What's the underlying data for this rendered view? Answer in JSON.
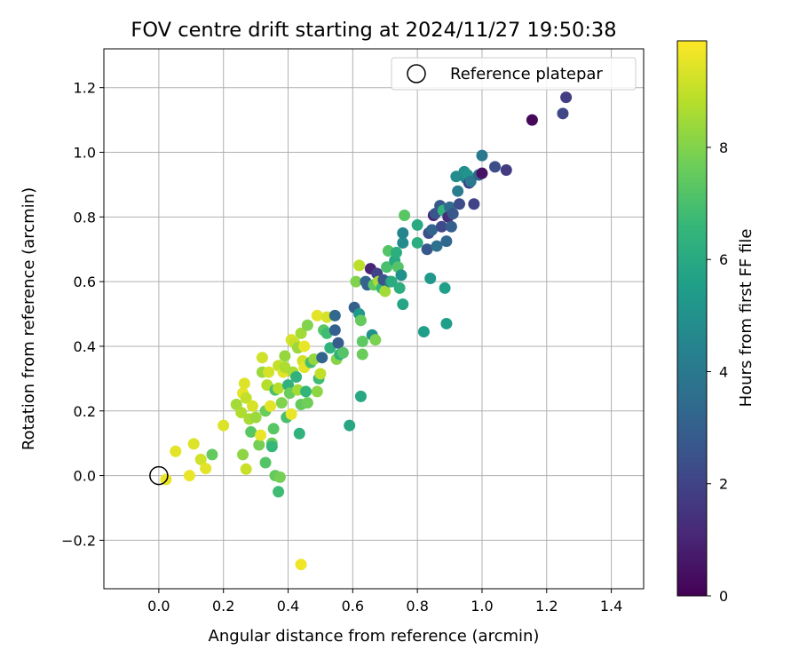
{
  "chart_data": {
    "type": "scatter",
    "title": "FOV centre drift starting at 2024/11/27 19:50:38",
    "xlabel": "Angular distance from reference (arcmin)",
    "ylabel": "Rotation from reference (arcmin)",
    "xlim": [
      -0.17,
      1.5
    ],
    "ylim": [
      -0.35,
      1.32
    ],
    "xticks": [
      0.0,
      0.2,
      0.4,
      0.6,
      0.8,
      1.0,
      1.2,
      1.4
    ],
    "xtick_labels": [
      "0.0",
      "0.2",
      "0.4",
      "0.6",
      "0.8",
      "1.0",
      "1.2",
      "1.4"
    ],
    "yticks": [
      -0.2,
      0.0,
      0.2,
      0.4,
      0.6,
      0.8,
      1.0,
      1.2
    ],
    "ytick_labels": [
      "−0.2",
      "0.0",
      "0.2",
      "0.4",
      "0.6",
      "0.8",
      "1.0",
      "1.2"
    ],
    "grid": true,
    "legend": {
      "label": "Reference platepar",
      "placement": "top-right"
    },
    "reference_point": [
      0.0,
      0.0
    ],
    "colorbar": {
      "label": "Hours from first FF file",
      "colormap": "viridis",
      "range": [
        0,
        9.9
      ],
      "ticks": [
        0,
        2,
        4,
        6,
        8
      ],
      "tick_labels": [
        "0",
        "2",
        "4",
        "6",
        "8"
      ]
    },
    "points": [
      [
        0.022,
        -0.012,
        9.6
      ],
      [
        0.052,
        0.075,
        9.5
      ],
      [
        0.095,
        0.0,
        9.6
      ],
      [
        0.108,
        0.098,
        9.4
      ],
      [
        0.13,
        0.05,
        9.2
      ],
      [
        0.145,
        0.022,
        9.5
      ],
      [
        0.165,
        0.065,
        7.5
      ],
      [
        0.2,
        0.155,
        9.4
      ],
      [
        0.24,
        0.22,
        8.5
      ],
      [
        0.255,
        0.195,
        8.7
      ],
      [
        0.26,
        0.065,
        8.2
      ],
      [
        0.26,
        0.255,
        9.5
      ],
      [
        0.265,
        0.285,
        9.4
      ],
      [
        0.27,
        0.24,
        9.0
      ],
      [
        0.27,
        0.02,
        9.1
      ],
      [
        0.28,
        0.175,
        8.6
      ],
      [
        0.285,
        0.135,
        7.3
      ],
      [
        0.29,
        0.215,
        9.3
      ],
      [
        0.3,
        0.18,
        8.4
      ],
      [
        0.31,
        0.095,
        7.8
      ],
      [
        0.315,
        0.125,
        9.6
      ],
      [
        0.32,
        0.32,
        8.4
      ],
      [
        0.32,
        0.365,
        9.2
      ],
      [
        0.33,
        0.2,
        7.6
      ],
      [
        0.33,
        0.04,
        7.2
      ],
      [
        0.335,
        0.28,
        8.8
      ],
      [
        0.34,
        0.32,
        9.3
      ],
      [
        0.345,
        0.215,
        9.5
      ],
      [
        0.35,
        0.1,
        7.6
      ],
      [
        0.35,
        0.09,
        6.6
      ],
      [
        0.355,
        0.145,
        7.3
      ],
      [
        0.36,
        0.265,
        7.0
      ],
      [
        0.36,
        0.0,
        7.5
      ],
      [
        0.37,
        0.34,
        9.0
      ],
      [
        0.37,
        0.27,
        8.8
      ],
      [
        0.37,
        -0.05,
        6.8
      ],
      [
        0.375,
        -0.005,
        7.8
      ],
      [
        0.38,
        0.225,
        8.0
      ],
      [
        0.385,
        0.32,
        9.5
      ],
      [
        0.39,
        0.37,
        8.3
      ],
      [
        0.39,
        0.335,
        8.7
      ],
      [
        0.395,
        0.18,
        7.0
      ],
      [
        0.4,
        0.28,
        6.3
      ],
      [
        0.405,
        0.255,
        7.6
      ],
      [
        0.41,
        0.42,
        9.3
      ],
      [
        0.41,
        0.19,
        9.6
      ],
      [
        0.415,
        0.32,
        8.6
      ],
      [
        0.42,
        0.41,
        9.1
      ],
      [
        0.425,
        0.305,
        6.4
      ],
      [
        0.43,
        0.395,
        8.4
      ],
      [
        0.43,
        0.265,
        8.5
      ],
      [
        0.435,
        0.13,
        6.4
      ],
      [
        0.44,
        0.44,
        8.5
      ],
      [
        0.44,
        0.22,
        7.5
      ],
      [
        0.44,
        -0.275,
        9.7
      ],
      [
        0.445,
        0.355,
        9.2
      ],
      [
        0.45,
        0.4,
        9.6
      ],
      [
        0.45,
        0.335,
        9.5
      ],
      [
        0.455,
        0.26,
        6.5
      ],
      [
        0.46,
        0.225,
        7.7
      ],
      [
        0.46,
        0.465,
        8.0
      ],
      [
        0.47,
        0.35,
        6.9
      ],
      [
        0.48,
        0.36,
        8.3
      ],
      [
        0.49,
        0.26,
        8.2
      ],
      [
        0.49,
        0.495,
        9.5
      ],
      [
        0.495,
        0.3,
        6.8
      ],
      [
        0.5,
        0.315,
        9.0
      ],
      [
        0.505,
        0.365,
        3.2
      ],
      [
        0.51,
        0.45,
        7.3
      ],
      [
        0.52,
        0.49,
        9.3
      ],
      [
        0.52,
        0.44,
        6.8
      ],
      [
        0.53,
        0.395,
        6.4
      ],
      [
        0.545,
        0.45,
        3.0
      ],
      [
        0.545,
        0.495,
        3.3
      ],
      [
        0.55,
        0.36,
        8.1
      ],
      [
        0.555,
        0.41,
        2.9
      ],
      [
        0.56,
        0.375,
        6.3
      ],
      [
        0.57,
        0.38,
        7.2
      ],
      [
        0.59,
        0.155,
        5.9
      ],
      [
        0.605,
        0.52,
        3.0
      ],
      [
        0.61,
        0.6,
        8.0
      ],
      [
        0.62,
        0.5,
        5.3
      ],
      [
        0.62,
        0.65,
        8.9
      ],
      [
        0.625,
        0.48,
        7.5
      ],
      [
        0.625,
        0.245,
        5.9
      ],
      [
        0.63,
        0.415,
        7.4
      ],
      [
        0.63,
        0.375,
        7.6
      ],
      [
        0.64,
        0.6,
        3.3
      ],
      [
        0.645,
        0.59,
        3.1
      ],
      [
        0.655,
        0.64,
        1.0
      ],
      [
        0.66,
        0.435,
        5.0
      ],
      [
        0.665,
        0.59,
        7.4
      ],
      [
        0.67,
        0.42,
        7.9
      ],
      [
        0.675,
        0.625,
        2.0
      ],
      [
        0.68,
        0.6,
        8.6
      ],
      [
        0.69,
        0.58,
        6.6
      ],
      [
        0.695,
        0.605,
        2.6
      ],
      [
        0.7,
        0.57,
        8.5
      ],
      [
        0.705,
        0.645,
        7.0
      ],
      [
        0.71,
        0.695,
        7.2
      ],
      [
        0.715,
        0.6,
        3.4
      ],
      [
        0.72,
        0.6,
        6.1
      ],
      [
        0.73,
        0.665,
        6.0
      ],
      [
        0.735,
        0.69,
        6.2
      ],
      [
        0.74,
        0.645,
        7.2
      ],
      [
        0.745,
        0.58,
        6.2
      ],
      [
        0.75,
        0.62,
        5.0
      ],
      [
        0.755,
        0.53,
        5.8
      ],
      [
        0.755,
        0.72,
        4.8
      ],
      [
        0.755,
        0.75,
        4.5
      ],
      [
        0.76,
        0.805,
        7.3
      ],
      [
        0.8,
        0.72,
        6.2
      ],
      [
        0.8,
        0.775,
        6.0
      ],
      [
        0.82,
        0.445,
        5.5
      ],
      [
        0.83,
        0.7,
        2.7
      ],
      [
        0.835,
        0.75,
        2.4
      ],
      [
        0.84,
        0.61,
        5.3
      ],
      [
        0.845,
        0.76,
        3.2
      ],
      [
        0.85,
        0.805,
        1.0
      ],
      [
        0.855,
        0.81,
        2.6
      ],
      [
        0.86,
        0.71,
        3.7
      ],
      [
        0.87,
        0.835,
        2.8
      ],
      [
        0.875,
        0.77,
        2.2
      ],
      [
        0.88,
        0.82,
        6.4
      ],
      [
        0.885,
        0.58,
        5.6
      ],
      [
        0.89,
        0.47,
        5.5
      ],
      [
        0.89,
        0.725,
        3.3
      ],
      [
        0.895,
        0.8,
        1.3
      ],
      [
        0.9,
        0.83,
        3.5
      ],
      [
        0.905,
        0.77,
        3.0
      ],
      [
        0.91,
        0.81,
        2.7
      ],
      [
        0.92,
        0.925,
        4.8
      ],
      [
        0.925,
        0.88,
        4.2
      ],
      [
        0.93,
        0.84,
        2.3
      ],
      [
        0.945,
        0.94,
        4.9
      ],
      [
        0.95,
        0.92,
        4.5
      ],
      [
        0.955,
        0.93,
        5.1
      ],
      [
        0.96,
        0.905,
        1.8
      ],
      [
        0.965,
        0.91,
        4.0
      ],
      [
        0.975,
        0.84,
        2.0
      ],
      [
        0.99,
        0.93,
        3.3
      ],
      [
        1.0,
        0.935,
        0.5
      ],
      [
        1.0,
        0.99,
        4.0
      ],
      [
        1.04,
        0.955,
        2.4
      ],
      [
        1.075,
        0.945,
        1.7
      ],
      [
        1.155,
        1.1,
        0.2
      ],
      [
        1.25,
        1.12,
        2.1
      ],
      [
        1.26,
        1.17,
        1.8
      ]
    ]
  }
}
